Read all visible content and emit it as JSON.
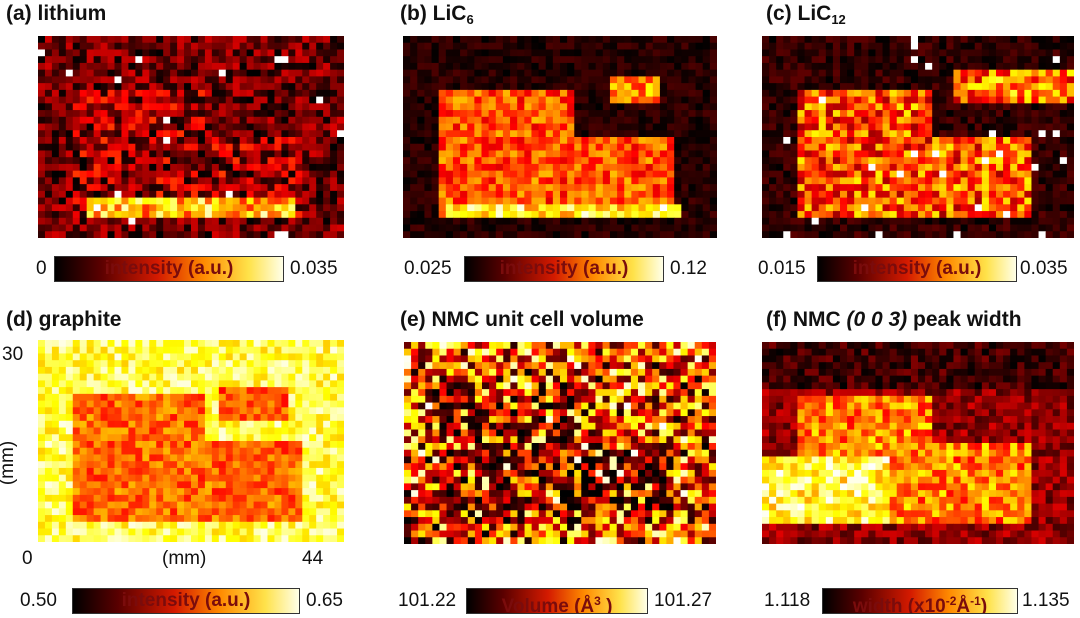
{
  "panels": [
    {
      "id": "a",
      "title_prefix": "(a) lithium",
      "title_sub": "",
      "title_italic": "",
      "title_suffix": "",
      "cb_min": "0",
      "cb_max": "0.035",
      "cb_label": "intensity (a.u.)",
      "colormap": "hot"
    },
    {
      "id": "b",
      "title_prefix": "(b) LiC",
      "title_sub": "6",
      "title_italic": "",
      "title_suffix": "",
      "cb_min": "0.025",
      "cb_max": "0.12",
      "cb_label": "intensity (a.u.)",
      "colormap": "hot"
    },
    {
      "id": "c",
      "title_prefix": "(c) LiC",
      "title_sub": "12",
      "title_italic": "",
      "title_suffix": "",
      "cb_min": "0.015",
      "cb_max": "0.035",
      "cb_label": "intensity (a.u.)",
      "colormap": "hot"
    },
    {
      "id": "d",
      "title_prefix": "(d) graphite",
      "title_sub": "",
      "title_italic": "",
      "title_suffix": "",
      "cb_min": "0.50",
      "cb_max": "0.65",
      "cb_label": "intensity (a.u.)",
      "colormap": "hot"
    },
    {
      "id": "e",
      "title_prefix": "(e) NMC unit cell volume",
      "title_sub": "",
      "title_italic": "",
      "title_suffix": "",
      "cb_min": "101.22",
      "cb_max": "101.27",
      "cb_label": "Volume (Å",
      "cb_label_sup": "3",
      "cb_label_end": " )",
      "colormap": "hot"
    },
    {
      "id": "f",
      "title_prefix": "(f) NMC ",
      "title_sub": "",
      "title_italic": "(0 0 3)",
      "title_suffix": " peak width",
      "cb_min": "1.118",
      "cb_max": "1.135",
      "cb_label": "width (x10",
      "cb_label_sup": "-2",
      "cb_label_mid": "Å",
      "cb_label_sup2": "-1",
      "cb_label_end": ")",
      "colormap": "hot"
    }
  ],
  "axes": {
    "ylabel": "(mm)",
    "xlabel": "(mm)",
    "y_top_tick": "30",
    "x_left_tick": "0",
    "x_right_tick": "44"
  },
  "chart_data": {
    "type": "heatmap",
    "grid": {
      "cols": 44,
      "rows": 30,
      "x_range_mm": [
        0,
        44
      ],
      "y_range_mm": [
        0,
        30
      ]
    },
    "colormap": "hot (black → red → yellow → white)",
    "maps": [
      {
        "panel": "(a) lithium",
        "range": [
          0,
          0.035
        ],
        "colorbar_label": "intensity (a.u.)"
      },
      {
        "panel": "(b) LiC6",
        "range": [
          0.025,
          0.12
        ],
        "colorbar_label": "intensity (a.u.)"
      },
      {
        "panel": "(c) LiC12",
        "range": [
          0.015,
          0.035
        ],
        "colorbar_label": "intensity (a.u.)"
      },
      {
        "panel": "(d) graphite",
        "range": [
          0.5,
          0.65
        ],
        "colorbar_label": "intensity (a.u.)"
      },
      {
        "panel": "(e) NMC unit cell volume",
        "range": [
          101.22,
          101.27
        ],
        "colorbar_label": "Volume (Å3 )"
      },
      {
        "panel": "(f) NMC (0 0 3) peak width",
        "range": [
          1.118,
          1.135
        ],
        "colorbar_label": "width (x10-2Å-1)"
      }
    ]
  }
}
